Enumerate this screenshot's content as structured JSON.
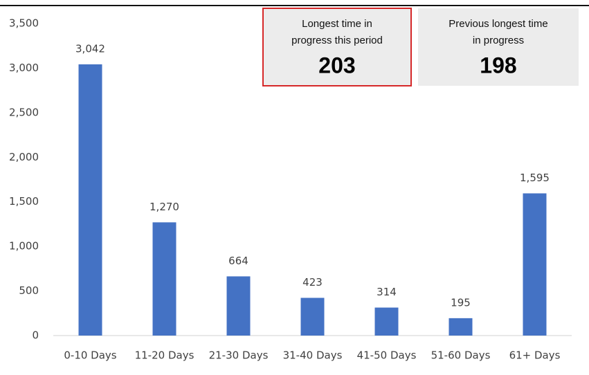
{
  "chart_data": {
    "type": "bar",
    "categories": [
      "0-10 Days",
      "11-20 Days",
      "21-30 Days",
      "31-40 Days",
      "41-50 Days",
      "51-60 Days",
      "61+ Days"
    ],
    "values": [
      3042,
      1270,
      664,
      423,
      314,
      195,
      1595
    ],
    "value_labels": [
      "3,042",
      "1,270",
      "664",
      "423",
      "314",
      "195",
      "1,595"
    ],
    "color": "#4472c4",
    "ylim": [
      0,
      3500
    ],
    "yticks": [
      0,
      500,
      {
        "value": 1000,
        "label": "1,000"
      },
      {
        "value": 1500,
        "label": "1,500"
      },
      {
        "value": 2000,
        "label": "2,000"
      },
      {
        "value": 2500,
        "label": "2,500"
      },
      {
        "value": 3000,
        "label": "3,000"
      },
      {
        "value": 3500,
        "label": "3,500"
      }
    ],
    "grid": false
  },
  "kpis": [
    {
      "label_lines": [
        "Longest time in",
        "progress this period"
      ],
      "value": 203
    },
    {
      "label_lines": [
        "Previous longest time",
        "in progress"
      ],
      "value": 198
    }
  ]
}
